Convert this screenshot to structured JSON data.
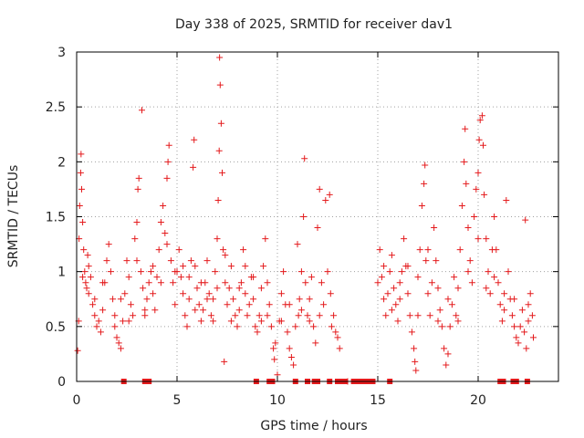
{
  "chart_data": {
    "type": "scatter",
    "title": "Day 338 of 2025, SRMTID for receiver dav1",
    "xlabel": "GPS time / hours",
    "ylabel": "SRMTID / TECUs",
    "xlim": [
      0,
      24
    ],
    "ylim": [
      0,
      3
    ],
    "xticks": [
      "0",
      "5",
      "10",
      "15",
      "20"
    ],
    "xtick_values": [
      0,
      5,
      10,
      15,
      20
    ],
    "yticks": [
      "0",
      "0.5",
      "1",
      "1.5",
      "2",
      "2.5",
      "3"
    ],
    "ytick_values": [
      0,
      0.5,
      1,
      1.5,
      2,
      2.5,
      3
    ],
    "grid": true,
    "marker": "+",
    "color": "#e41a1c",
    "series": [
      {
        "name": "SRMTID",
        "points": [
          [
            0.05,
            0.28
          ],
          [
            0.1,
            0.55
          ],
          [
            0.12,
            1.3
          ],
          [
            0.15,
            1.6
          ],
          [
            0.2,
            1.9
          ],
          [
            0.22,
            2.07
          ],
          [
            0.25,
            1.75
          ],
          [
            0.3,
            1.45
          ],
          [
            0.35,
            1.2
          ],
          [
            0.4,
            1.0
          ],
          [
            0.45,
            0.9
          ],
          [
            0.5,
            0.85
          ],
          [
            0.55,
            1.15
          ],
          [
            0.6,
            0.8
          ],
          [
            0.7,
            0.95
          ],
          [
            0.8,
            0.7
          ],
          [
            0.9,
            0.6
          ],
          [
            1.0,
            0.5
          ],
          [
            1.1,
            0.55
          ],
          [
            1.2,
            0.45
          ],
          [
            1.3,
            0.65
          ],
          [
            1.4,
            0.9
          ],
          [
            1.5,
            1.1
          ],
          [
            1.6,
            1.25
          ],
          [
            1.7,
            1.0
          ],
          [
            1.8,
            0.75
          ],
          [
            1.9,
            0.5
          ],
          [
            2.0,
            0.4
          ],
          [
            2.1,
            0.35
          ],
          [
            2.2,
            0.3
          ],
          [
            2.3,
            0.55
          ],
          [
            2.4,
            0.8
          ],
          [
            2.5,
            1.1
          ],
          [
            2.6,
            0.95
          ],
          [
            2.7,
            0.7
          ],
          [
            2.8,
            0.6
          ],
          [
            2.9,
            1.3
          ],
          [
            3.0,
            1.45
          ],
          [
            3.05,
            1.75
          ],
          [
            3.1,
            1.85
          ],
          [
            3.2,
            1.0
          ],
          [
            3.25,
            2.47
          ],
          [
            3.3,
            0.85
          ],
          [
            3.4,
            0.6
          ],
          [
            3.5,
            0.75
          ],
          [
            3.6,
            0.9
          ],
          [
            3.7,
            1.0
          ],
          [
            3.8,
            0.8
          ],
          [
            3.9,
            0.65
          ],
          [
            4.0,
            0.95
          ],
          [
            4.1,
            1.2
          ],
          [
            4.2,
            1.45
          ],
          [
            4.3,
            1.6
          ],
          [
            4.4,
            1.35
          ],
          [
            4.5,
            1.85
          ],
          [
            4.55,
            2.0
          ],
          [
            4.6,
            2.15
          ],
          [
            4.7,
            1.1
          ],
          [
            4.8,
            0.9
          ],
          [
            4.9,
            0.7
          ],
          [
            5.0,
            1.0
          ],
          [
            5.1,
            1.2
          ],
          [
            5.2,
            0.95
          ],
          [
            5.3,
            0.8
          ],
          [
            5.4,
            0.6
          ],
          [
            5.5,
            0.5
          ],
          [
            5.6,
            0.75
          ],
          [
            5.7,
            1.1
          ],
          [
            5.8,
            1.95
          ],
          [
            5.85,
            2.2
          ],
          [
            5.9,
            1.05
          ],
          [
            6.0,
            0.85
          ],
          [
            6.1,
            0.7
          ],
          [
            6.2,
            0.55
          ],
          [
            6.3,
            0.65
          ],
          [
            6.4,
            0.9
          ],
          [
            6.5,
            1.1
          ],
          [
            6.6,
            0.8
          ],
          [
            6.7,
            0.6
          ],
          [
            6.8,
            0.75
          ],
          [
            6.9,
            1.0
          ],
          [
            7.0,
            1.3
          ],
          [
            7.05,
            1.65
          ],
          [
            7.1,
            2.1
          ],
          [
            7.12,
            2.95
          ],
          [
            7.15,
            2.7
          ],
          [
            7.2,
            2.35
          ],
          [
            7.25,
            1.9
          ],
          [
            7.3,
            1.2
          ],
          [
            7.35,
            0.18
          ],
          [
            7.4,
            0.9
          ],
          [
            7.5,
            0.7
          ],
          [
            7.6,
            0.85
          ],
          [
            7.7,
            1.05
          ],
          [
            7.8,
            0.75
          ],
          [
            7.9,
            0.6
          ],
          [
            8.0,
            0.5
          ],
          [
            8.1,
            0.65
          ],
          [
            8.2,
            0.9
          ],
          [
            8.3,
            1.2
          ],
          [
            8.4,
            0.8
          ],
          [
            8.5,
            0.6
          ],
          [
            8.6,
            0.7
          ],
          [
            8.7,
            0.95
          ],
          [
            8.8,
            0.75
          ],
          [
            8.9,
            0.5
          ],
          [
            9.0,
            0.45
          ],
          [
            9.1,
            0.6
          ],
          [
            9.2,
            0.85
          ],
          [
            9.3,
            1.05
          ],
          [
            9.4,
            1.3
          ],
          [
            9.5,
            0.9
          ],
          [
            9.6,
            0.7
          ],
          [
            9.7,
            0.5
          ],
          [
            9.8,
            0.3
          ],
          [
            9.85,
            0.2
          ],
          [
            9.9,
            0.35
          ],
          [
            10.0,
            0.06
          ],
          [
            10.1,
            0.55
          ],
          [
            10.2,
            0.8
          ],
          [
            10.3,
            1.0
          ],
          [
            10.4,
            0.7
          ],
          [
            10.5,
            0.45
          ],
          [
            10.6,
            0.3
          ],
          [
            10.7,
            0.22
          ],
          [
            10.8,
            0.15
          ],
          [
            10.9,
            0.5
          ],
          [
            11.0,
            1.25
          ],
          [
            11.05,
            0.6
          ],
          [
            11.1,
            0.75
          ],
          [
            11.2,
            1.0
          ],
          [
            11.3,
            1.5
          ],
          [
            11.35,
            2.03
          ],
          [
            11.4,
            0.9
          ],
          [
            11.5,
            0.6
          ],
          [
            11.6,
            0.75
          ],
          [
            11.7,
            0.95
          ],
          [
            11.8,
            0.5
          ],
          [
            11.9,
            0.35
          ],
          [
            12.0,
            1.4
          ],
          [
            12.1,
            1.75
          ],
          [
            12.2,
            0.9
          ],
          [
            12.3,
            0.7
          ],
          [
            12.4,
            1.65
          ],
          [
            12.5,
            1.0
          ],
          [
            12.6,
            1.7
          ],
          [
            12.65,
            0.8
          ],
          [
            12.7,
            0.5
          ],
          [
            12.8,
            0.6
          ],
          [
            12.9,
            0.45
          ],
          [
            13.0,
            0.4
          ],
          [
            13.1,
            0.3
          ],
          [
            13.5,
            0.0
          ],
          [
            15.0,
            0.9
          ],
          [
            15.1,
            1.2
          ],
          [
            15.2,
            0.95
          ],
          [
            15.3,
            0.75
          ],
          [
            15.4,
            0.6
          ],
          [
            15.5,
            0.8
          ],
          [
            15.6,
            1.0
          ],
          [
            15.7,
            1.15
          ],
          [
            15.8,
            0.85
          ],
          [
            15.9,
            0.7
          ],
          [
            16.0,
            0.55
          ],
          [
            16.1,
            0.75
          ],
          [
            16.2,
            1.0
          ],
          [
            16.3,
            1.3
          ],
          [
            16.4,
            1.05
          ],
          [
            16.5,
            0.8
          ],
          [
            16.6,
            0.6
          ],
          [
            16.7,
            0.45
          ],
          [
            16.8,
            0.3
          ],
          [
            16.85,
            0.18
          ],
          [
            16.9,
            0.1
          ],
          [
            17.0,
            0.6
          ],
          [
            17.1,
            1.2
          ],
          [
            17.2,
            1.6
          ],
          [
            17.3,
            1.8
          ],
          [
            17.35,
            1.97
          ],
          [
            17.4,
            1.1
          ],
          [
            17.5,
            0.8
          ],
          [
            17.6,
            0.6
          ],
          [
            17.7,
            0.9
          ],
          [
            17.8,
            1.4
          ],
          [
            17.9,
            1.1
          ],
          [
            18.0,
            0.85
          ],
          [
            18.1,
            0.65
          ],
          [
            18.2,
            0.5
          ],
          [
            18.3,
            0.3
          ],
          [
            18.4,
            0.15
          ],
          [
            18.5,
            0.25
          ],
          [
            18.6,
            0.5
          ],
          [
            18.7,
            0.7
          ],
          [
            18.8,
            0.95
          ],
          [
            18.9,
            0.6
          ],
          [
            19.0,
            0.85
          ],
          [
            19.1,
            1.2
          ],
          [
            19.2,
            1.6
          ],
          [
            19.3,
            2.0
          ],
          [
            19.35,
            2.3
          ],
          [
            19.4,
            1.8
          ],
          [
            19.5,
            1.4
          ],
          [
            19.6,
            1.1
          ],
          [
            19.7,
            0.9
          ],
          [
            19.8,
            1.5
          ],
          [
            19.9,
            1.75
          ],
          [
            20.0,
            1.9
          ],
          [
            20.05,
            2.2
          ],
          [
            20.1,
            2.38
          ],
          [
            20.2,
            2.42
          ],
          [
            20.25,
            2.15
          ],
          [
            20.3,
            1.7
          ],
          [
            20.4,
            1.3
          ],
          [
            20.5,
            1.0
          ],
          [
            20.6,
            0.8
          ],
          [
            20.7,
            1.2
          ],
          [
            20.8,
            1.5
          ],
          [
            20.9,
            1.2
          ],
          [
            21.0,
            0.9
          ],
          [
            21.1,
            0.7
          ],
          [
            21.2,
            0.55
          ],
          [
            21.3,
            0.8
          ],
          [
            21.4,
            1.65
          ],
          [
            21.5,
            1.0
          ],
          [
            21.6,
            0.75
          ],
          [
            21.7,
            0.6
          ],
          [
            21.8,
            0.5
          ],
          [
            21.9,
            0.4
          ],
          [
            22.0,
            0.35
          ],
          [
            22.1,
            0.5
          ],
          [
            22.2,
            0.65
          ],
          [
            22.3,
            0.45
          ],
          [
            22.35,
            1.47
          ],
          [
            22.4,
            0.3
          ],
          [
            22.5,
            0.55
          ],
          [
            22.6,
            0.8
          ],
          [
            22.7,
            0.6
          ],
          [
            22.75,
            0.4
          ],
          [
            0.3,
            0.95
          ],
          [
            0.6,
            1.05
          ],
          [
            0.9,
            0.75
          ],
          [
            1.3,
            0.9
          ],
          [
            1.9,
            0.6
          ],
          [
            2.2,
            0.75
          ],
          [
            2.6,
            0.55
          ],
          [
            3.0,
            1.1
          ],
          [
            3.4,
            0.65
          ],
          [
            3.8,
            1.05
          ],
          [
            4.2,
            0.9
          ],
          [
            4.5,
            1.25
          ],
          [
            4.9,
            1.0
          ],
          [
            5.3,
            1.05
          ],
          [
            5.6,
            0.95
          ],
          [
            5.9,
            0.65
          ],
          [
            6.2,
            0.9
          ],
          [
            6.5,
            0.75
          ],
          [
            6.8,
            0.55
          ],
          [
            7.0,
            0.85
          ],
          [
            7.4,
            1.15
          ],
          [
            7.7,
            0.55
          ],
          [
            8.1,
            0.85
          ],
          [
            8.4,
            1.05
          ],
          [
            8.8,
            0.95
          ],
          [
            9.2,
            0.55
          ],
          [
            9.5,
            0.6
          ],
          [
            10.2,
            0.55
          ],
          [
            10.6,
            0.7
          ],
          [
            11.2,
            0.65
          ],
          [
            11.6,
            0.55
          ],
          [
            12.1,
            0.6
          ],
          [
            15.3,
            1.05
          ],
          [
            15.7,
            0.65
          ],
          [
            16.1,
            0.9
          ],
          [
            16.5,
            1.05
          ],
          [
            17.0,
            0.95
          ],
          [
            17.5,
            1.2
          ],
          [
            18.0,
            0.55
          ],
          [
            18.5,
            0.75
          ],
          [
            19.0,
            0.55
          ],
          [
            19.5,
            1.0
          ],
          [
            20.0,
            1.3
          ],
          [
            20.4,
            0.85
          ],
          [
            20.8,
            0.95
          ],
          [
            21.3,
            0.65
          ],
          [
            21.8,
            0.75
          ],
          [
            22.5,
            0.7
          ]
        ]
      },
      {
        "name": "zero-flag",
        "points": [
          [
            2.35,
            0.0
          ],
          [
            3.4,
            0.0
          ],
          [
            3.5,
            0.0
          ],
          [
            3.6,
            0.0
          ],
          [
            8.95,
            0.0
          ],
          [
            9.6,
            0.0
          ],
          [
            9.75,
            0.0
          ],
          [
            10.9,
            0.0
          ],
          [
            11.5,
            0.0
          ],
          [
            11.85,
            0.0
          ],
          [
            12.0,
            0.0
          ],
          [
            12.6,
            0.0
          ],
          [
            13.0,
            0.0
          ],
          [
            13.2,
            0.0
          ],
          [
            13.35,
            0.0
          ],
          [
            13.8,
            0.0
          ],
          [
            14.0,
            0.0
          ],
          [
            14.2,
            0.0
          ],
          [
            14.4,
            0.0
          ],
          [
            14.6,
            0.0
          ],
          [
            14.75,
            0.0
          ],
          [
            15.6,
            0.0
          ],
          [
            21.1,
            0.0
          ],
          [
            21.25,
            0.0
          ],
          [
            21.75,
            0.0
          ],
          [
            21.9,
            0.0
          ],
          [
            22.45,
            0.0
          ]
        ]
      }
    ]
  }
}
